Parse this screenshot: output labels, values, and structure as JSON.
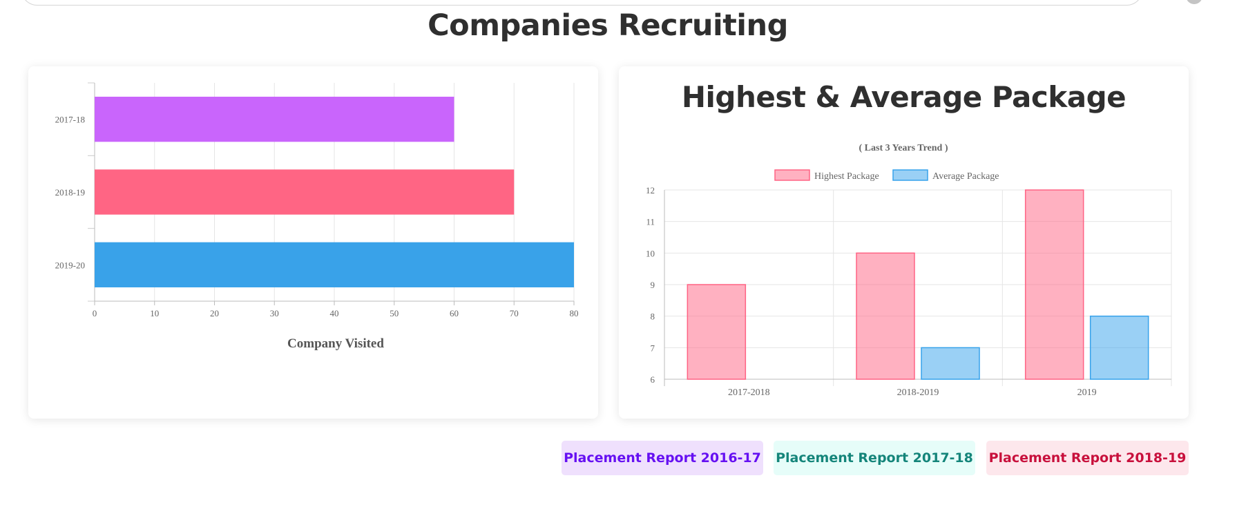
{
  "page": {
    "title": "Companies Recruiting"
  },
  "colors": {
    "bar_2017_18": "#c965fc",
    "bar_2018_19": "#ff6584",
    "bar_2019_20": "#39a2e9",
    "highest_fill": "rgba(255,99,132,0.5)",
    "highest_border": "#ff6384",
    "average_fill": "rgba(54,162,235,0.5)",
    "average_border": "#36a2eb"
  },
  "left_chart": {
    "chart_data": {
      "type": "bar",
      "orientation": "horizontal",
      "categories": [
        "2017-18",
        "2018-19",
        "2019-20"
      ],
      "values": [
        60,
        70,
        80
      ],
      "xlabel": "Company Visited",
      "xlim": [
        0,
        80
      ],
      "ticks": [
        "0",
        "10",
        "20",
        "30",
        "40",
        "50",
        "60",
        "70",
        "80"
      ],
      "grid": true,
      "legend": "none"
    }
  },
  "right_chart": {
    "card_title": "Highest & Average Package",
    "chart_data": {
      "type": "bar",
      "title": "( Last 3 Years Trend )",
      "categories": [
        "2017-2018",
        "2018-2019",
        "2019"
      ],
      "series": [
        {
          "name": "Highest Package",
          "values": [
            9,
            10,
            12
          ]
        },
        {
          "name": "Average Package",
          "values": [
            6,
            7,
            8
          ]
        }
      ],
      "ylim": [
        6,
        12
      ],
      "ticks": [
        "6",
        "7",
        "8",
        "9",
        "10",
        "11",
        "12"
      ],
      "grid": true,
      "legend": "top"
    }
  },
  "reports": [
    {
      "label": "Placement Report 2016-17",
      "color": "#6610f2",
      "bg": "#efe0fd"
    },
    {
      "label": "Placement Report 2017-18",
      "color": "#14857a",
      "bg": "#e6fdf9"
    },
    {
      "label": "Placement Report 2018-19",
      "color": "#c8103c",
      "bg": "#fde7ec"
    }
  ]
}
